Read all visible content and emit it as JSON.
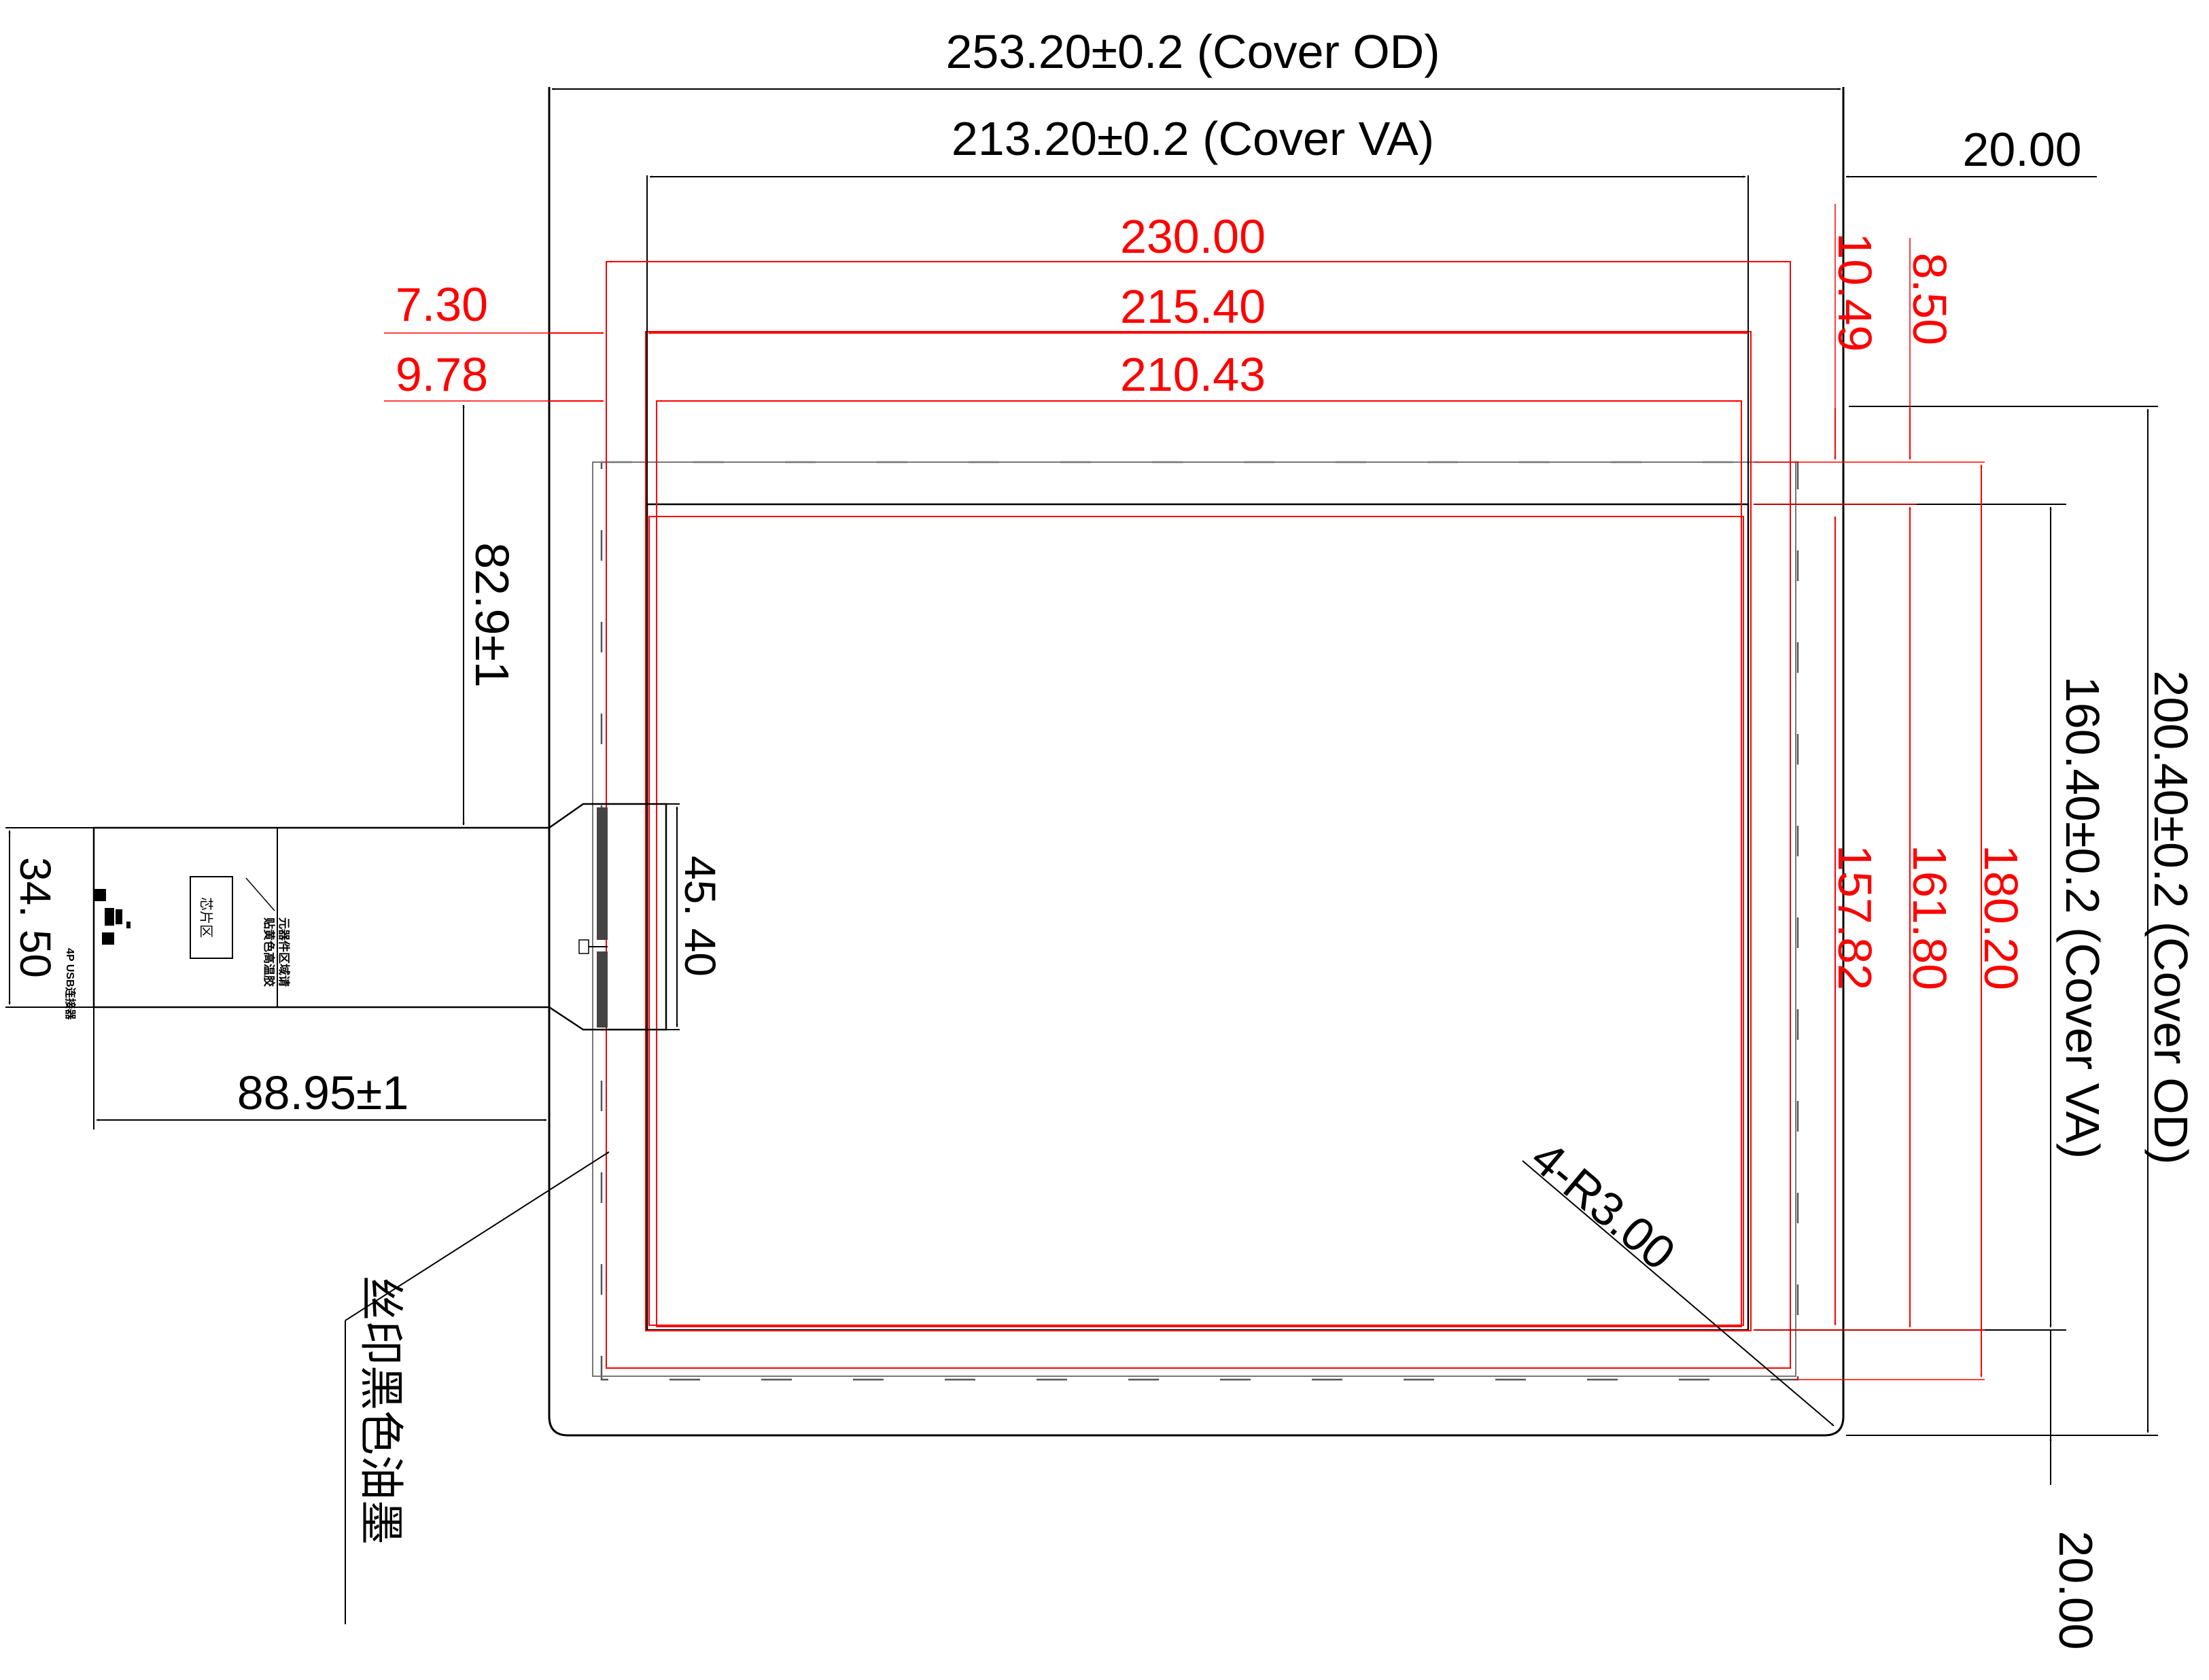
{
  "dimensions": {
    "cover_od_width": "253.20±0.2 (Cover OD)",
    "cover_va_width": "213.20±0.2 (Cover VA)",
    "right_offset_top": "20.00",
    "bottom_offset": "20.00",
    "width_230": "230.00",
    "width_215": "215.40",
    "width_210": "210.43",
    "left_7_30": "7.30",
    "left_9_78": "9.78",
    "top_10_49": "10.49",
    "top_8_50": "8.50",
    "fpc_top": "82.9±1",
    "fpc_width": "34. 50",
    "fpc_conn": "45. 40",
    "fpc_length": "88.95±1",
    "height_157": "157.82",
    "height_161": "161.80",
    "height_180": "180.20",
    "cover_va_height": "160.40±0.2 (Cover VA)",
    "cover_od_height": "200.40±0.2 (Cover OD)",
    "corner_radius": "4-R3.00"
  },
  "notes": {
    "silk_print": "丝印黑色油墨",
    "chip_area": "芯片区",
    "component_note_1": "元器件区域请",
    "component_note_2": "贴黄色高温胶",
    "usb_label": "4P USB连接器"
  },
  "colors": {
    "line": "#000000",
    "red": "#ff0000",
    "gray": "#666666"
  }
}
